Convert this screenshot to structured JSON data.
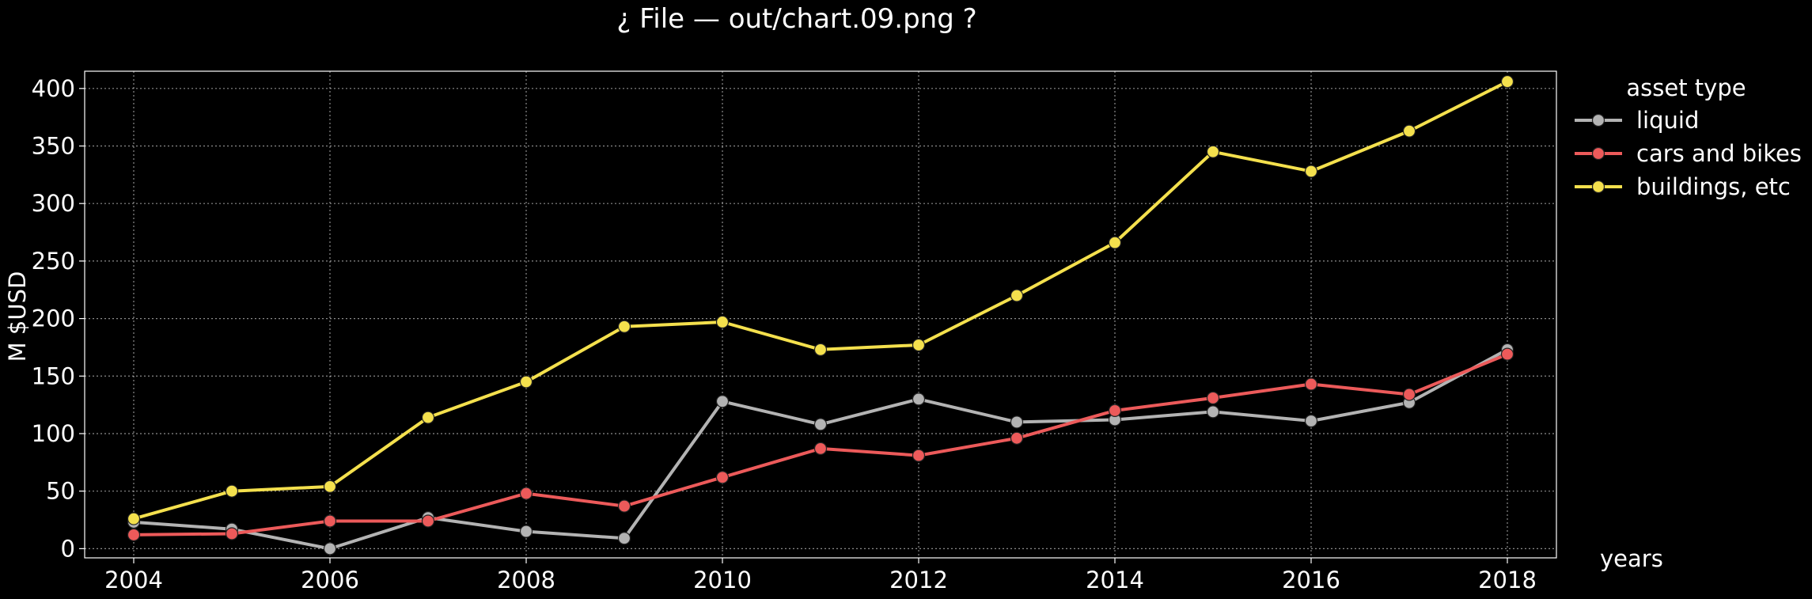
{
  "window": {
    "title": "¿ File — out/chart.09.png ?"
  },
  "chart_data": {
    "type": "line",
    "title": "¿ File — out/chart.09.png ?",
    "xlabel": "years",
    "ylabel": "M $USD",
    "x": [
      2004,
      2005,
      2006,
      2007,
      2008,
      2009,
      2010,
      2011,
      2012,
      2013,
      2014,
      2015,
      2016,
      2017,
      2018
    ],
    "xlim": [
      2003.5,
      2018.5
    ],
    "ylim": [
      -8,
      415
    ],
    "xticks": [
      2004,
      2006,
      2008,
      2010,
      2012,
      2014,
      2016,
      2018
    ],
    "yticks": [
      0,
      50,
      100,
      150,
      200,
      250,
      300,
      350,
      400
    ],
    "grid": true,
    "legend": {
      "title": "asset type",
      "placement": "outside-top-right"
    },
    "series": [
      {
        "name": "liquid",
        "color": "#b3b3b3",
        "values": [
          23,
          17,
          0,
          27,
          15,
          9,
          128,
          108,
          130,
          110,
          112,
          119,
          111,
          127,
          173
        ]
      },
      {
        "name": "cars and bikes",
        "color": "#ec5a5a",
        "values": [
          12,
          13,
          24,
          24,
          48,
          37,
          62,
          87,
          81,
          96,
          120,
          131,
          143,
          134,
          169
        ]
      },
      {
        "name": "buildings, etc",
        "color": "#f4e04d",
        "values": [
          26,
          50,
          54,
          114,
          145,
          193,
          197,
          173,
          177,
          220,
          266,
          345,
          328,
          363,
          406
        ]
      }
    ]
  }
}
